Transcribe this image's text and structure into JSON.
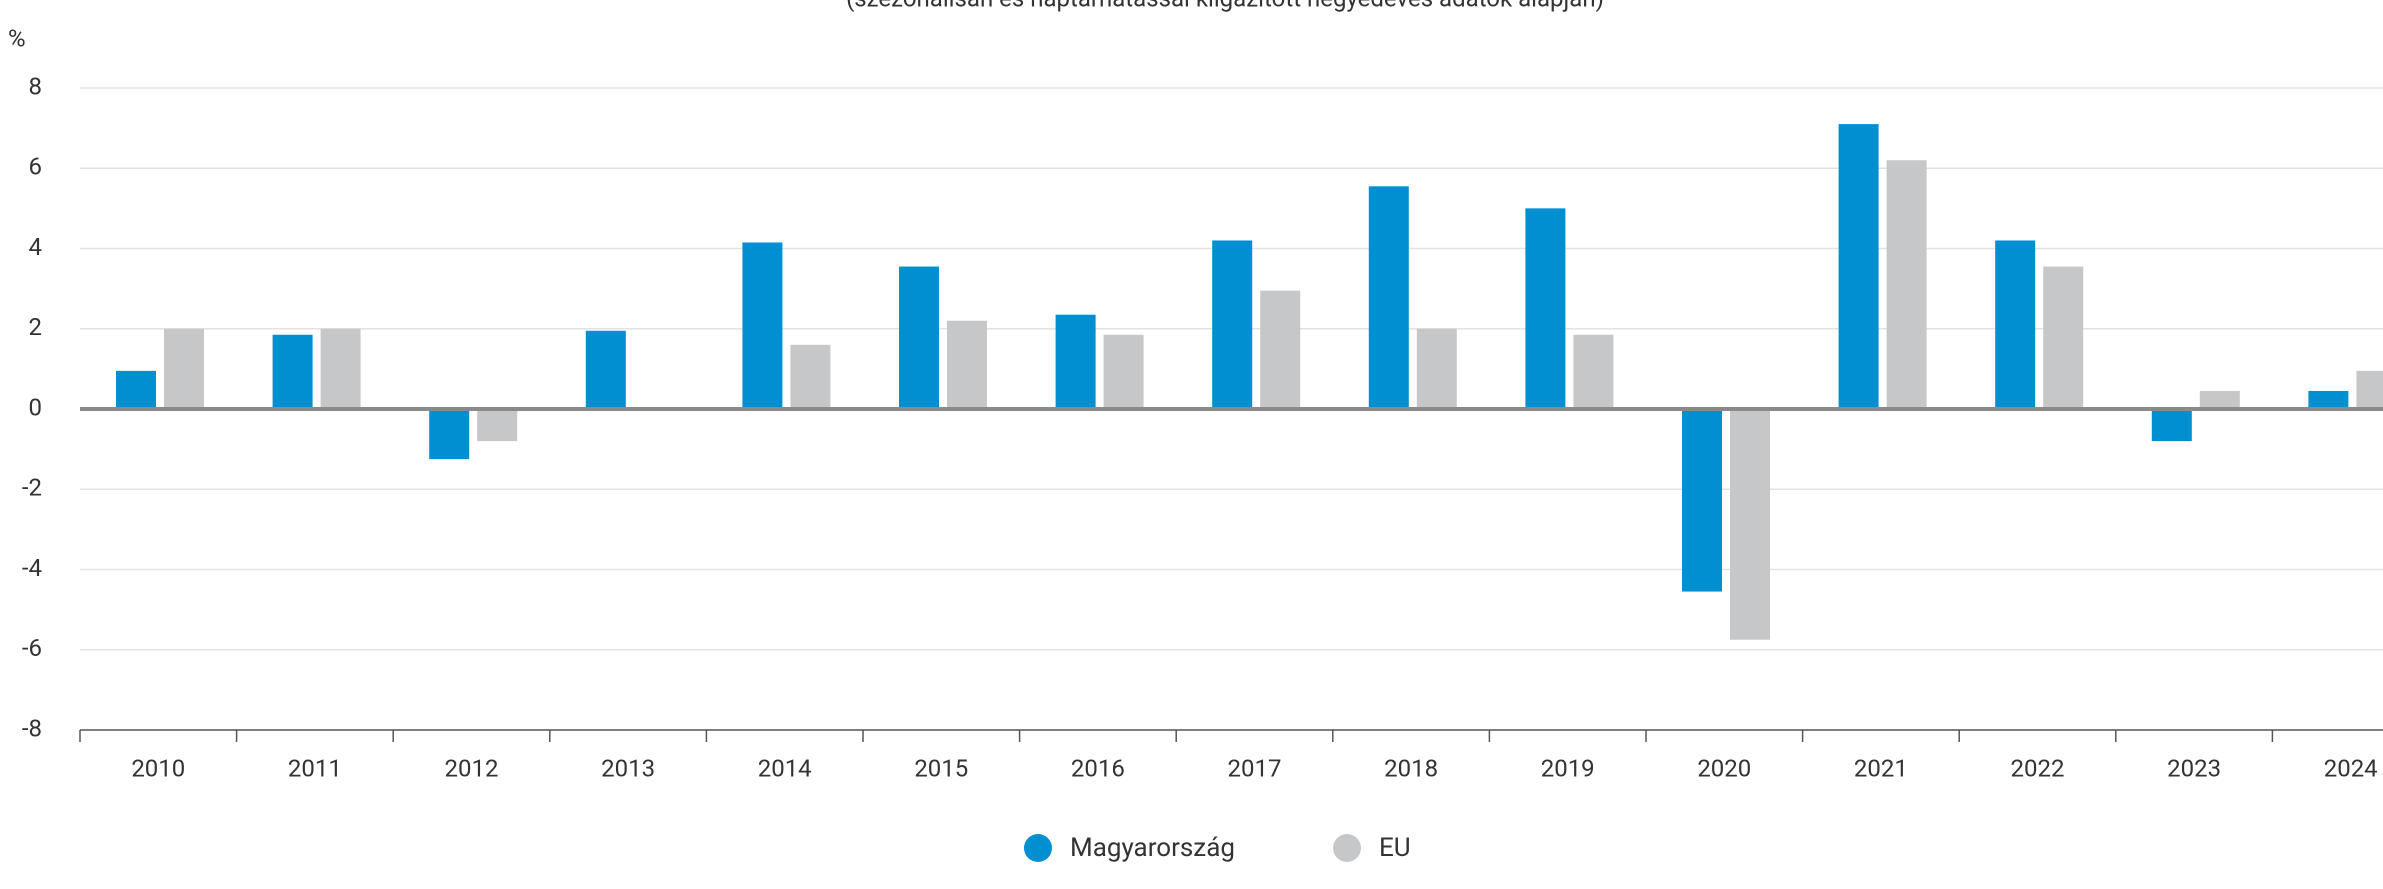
{
  "chart_data": {
    "type": "bar",
    "subtitle": "(szezonálisan és naptárhatással kiigazított negyedéves adatok alapján)",
    "y_unit": "%",
    "categories": [
      "2010",
      "2011",
      "2012",
      "2013",
      "2014",
      "2015",
      "2016",
      "2017",
      "2018",
      "2019",
      "2020",
      "2021",
      "2022",
      "2023",
      "2024"
    ],
    "series": [
      {
        "name": "Magyarország",
        "color": "#008fd0",
        "values": [
          0.95,
          1.85,
          -1.25,
          1.95,
          4.15,
          3.55,
          2.35,
          4.2,
          5.55,
          5.0,
          -4.55,
          7.1,
          4.2,
          -0.8,
          0.45
        ]
      },
      {
        "name": "EU",
        "color": "#c6c7c9",
        "values": [
          2.0,
          2.0,
          -0.8,
          0,
          1.6,
          2.2,
          1.85,
          2.95,
          2.0,
          1.85,
          -5.75,
          6.2,
          3.55,
          0.45,
          0.95
        ]
      }
    ],
    "ylim": [
      -8,
      8
    ],
    "yticks": [
      -8,
      -6,
      -4,
      -2,
      0,
      2,
      4,
      6,
      8
    ],
    "grid": true
  }
}
